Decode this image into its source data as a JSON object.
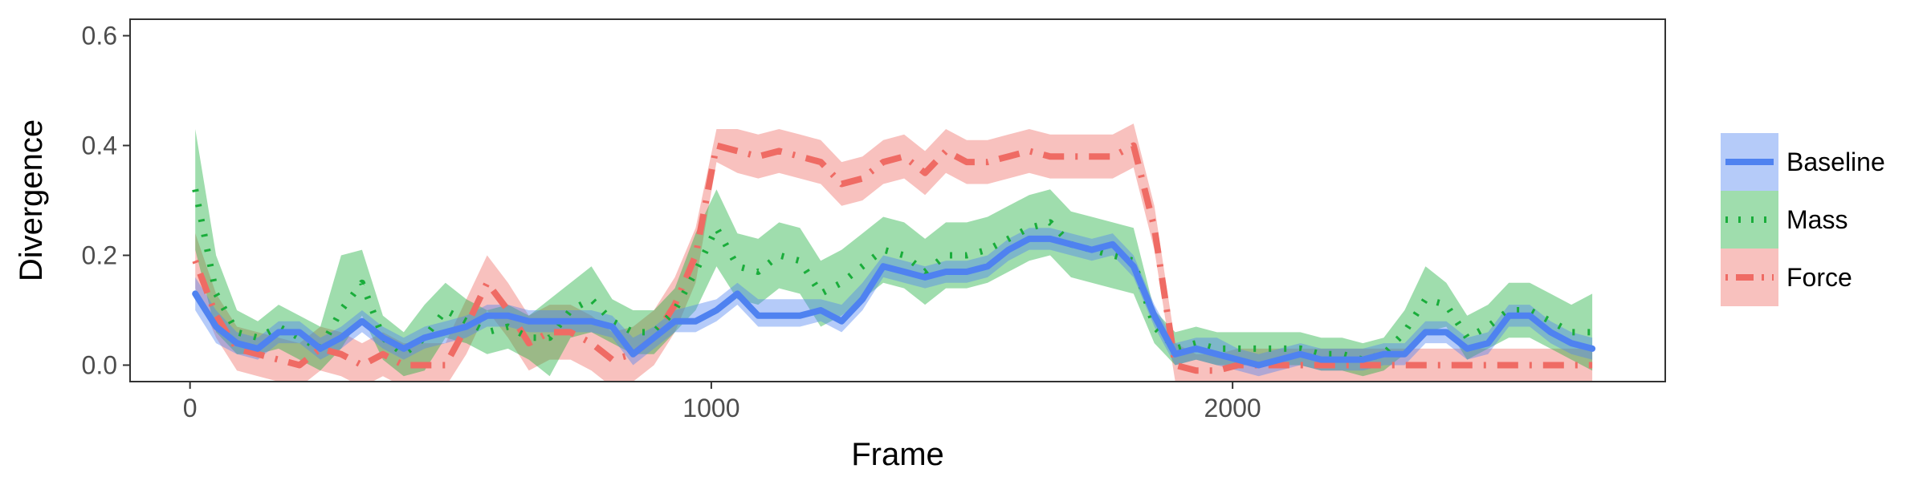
{
  "colors": {
    "Baseline": "#4f82f0",
    "Mass": "#1aad3b",
    "Force": "#ef6b64"
  },
  "chart_data": {
    "type": "line",
    "title": "",
    "xlabel": "Frame",
    "ylabel": "Divergence",
    "xlim": [
      -115,
      2830
    ],
    "ylim": [
      -0.03,
      0.63
    ],
    "x_ticks": [
      0,
      1000,
      2000
    ],
    "x_tick_labels": [
      "0",
      "1000",
      "2000"
    ],
    "y_ticks": [
      0.0,
      0.2,
      0.4,
      0.6
    ],
    "y_tick_labels": [
      "0.0",
      "0.2",
      "0.4",
      "0.6"
    ],
    "grid": false,
    "legend_position": "right",
    "x": [
      10,
      50,
      90,
      130,
      170,
      210,
      250,
      290,
      330,
      370,
      410,
      450,
      490,
      530,
      570,
      610,
      650,
      690,
      730,
      770,
      810,
      850,
      890,
      930,
      970,
      1010,
      1050,
      1090,
      1130,
      1170,
      1210,
      1250,
      1290,
      1330,
      1370,
      1410,
      1450,
      1490,
      1530,
      1570,
      1610,
      1650,
      1690,
      1730,
      1770,
      1810,
      1850,
      1890,
      1930,
      1970,
      2010,
      2050,
      2090,
      2130,
      2170,
      2210,
      2250,
      2290,
      2330,
      2370,
      2410,
      2450,
      2490,
      2530,
      2570,
      2610,
      2650,
      2690
    ],
    "series": [
      {
        "name": "Baseline",
        "style": "solid",
        "values": [
          0.13,
          0.07,
          0.04,
          0.03,
          0.06,
          0.06,
          0.03,
          0.05,
          0.08,
          0.05,
          0.03,
          0.05,
          0.06,
          0.07,
          0.09,
          0.09,
          0.08,
          0.08,
          0.08,
          0.08,
          0.07,
          0.02,
          0.05,
          0.08,
          0.08,
          0.1,
          0.13,
          0.09,
          0.09,
          0.09,
          0.1,
          0.08,
          0.12,
          0.18,
          0.17,
          0.16,
          0.17,
          0.17,
          0.18,
          0.21,
          0.23,
          0.23,
          0.22,
          0.21,
          0.22,
          0.18,
          0.09,
          0.02,
          0.03,
          0.02,
          0.01,
          0.0,
          0.01,
          0.02,
          0.01,
          0.01,
          0.01,
          0.02,
          0.02,
          0.06,
          0.06,
          0.03,
          0.04,
          0.09,
          0.09,
          0.06,
          0.04,
          0.03
        ],
        "upper": [
          0.16,
          0.1,
          0.06,
          0.05,
          0.08,
          0.08,
          0.05,
          0.07,
          0.1,
          0.07,
          0.05,
          0.07,
          0.08,
          0.09,
          0.11,
          0.11,
          0.1,
          0.1,
          0.1,
          0.1,
          0.09,
          0.05,
          0.07,
          0.1,
          0.11,
          0.12,
          0.15,
          0.12,
          0.12,
          0.12,
          0.12,
          0.11,
          0.15,
          0.2,
          0.19,
          0.18,
          0.19,
          0.19,
          0.2,
          0.23,
          0.25,
          0.25,
          0.24,
          0.23,
          0.24,
          0.2,
          0.11,
          0.04,
          0.05,
          0.05,
          0.03,
          0.02,
          0.03,
          0.04,
          0.03,
          0.03,
          0.03,
          0.04,
          0.04,
          0.08,
          0.08,
          0.05,
          0.06,
          0.11,
          0.11,
          0.08,
          0.06,
          0.05
        ],
        "lower": [
          0.1,
          0.04,
          0.02,
          0.01,
          0.04,
          0.04,
          0.01,
          0.03,
          0.06,
          0.03,
          0.01,
          0.03,
          0.04,
          0.05,
          0.07,
          0.07,
          0.06,
          0.06,
          0.06,
          0.06,
          0.05,
          0.0,
          0.03,
          0.06,
          0.06,
          0.08,
          0.11,
          0.07,
          0.07,
          0.07,
          0.08,
          0.06,
          0.1,
          0.16,
          0.15,
          0.14,
          0.15,
          0.15,
          0.16,
          0.19,
          0.21,
          0.21,
          0.2,
          0.19,
          0.2,
          0.16,
          0.07,
          0.0,
          0.01,
          0.0,
          -0.01,
          -0.02,
          -0.01,
          0.0,
          -0.01,
          -0.01,
          -0.01,
          0.0,
          0.0,
          0.04,
          0.04,
          0.01,
          0.02,
          0.07,
          0.07,
          0.04,
          0.02,
          0.01
        ]
      },
      {
        "name": "Mass",
        "style": "dotted",
        "values": [
          0.32,
          0.13,
          0.06,
          0.05,
          0.07,
          0.05,
          0.03,
          0.1,
          0.15,
          0.05,
          0.02,
          0.05,
          0.1,
          0.08,
          0.06,
          0.07,
          0.05,
          0.05,
          0.1,
          0.12,
          0.08,
          0.06,
          0.06,
          0.1,
          0.17,
          0.25,
          0.18,
          0.17,
          0.2,
          0.19,
          0.13,
          0.15,
          0.18,
          0.21,
          0.2,
          0.17,
          0.2,
          0.2,
          0.21,
          0.23,
          0.25,
          0.26,
          0.22,
          0.21,
          0.2,
          0.19,
          0.07,
          0.03,
          0.04,
          0.03,
          0.03,
          0.03,
          0.03,
          0.03,
          0.02,
          0.02,
          0.01,
          0.02,
          0.06,
          0.12,
          0.11,
          0.05,
          0.07,
          0.1,
          0.1,
          0.08,
          0.06,
          0.06
        ],
        "upper": [
          0.43,
          0.2,
          0.1,
          0.08,
          0.11,
          0.09,
          0.07,
          0.2,
          0.21,
          0.09,
          0.06,
          0.11,
          0.15,
          0.12,
          0.1,
          0.11,
          0.09,
          0.12,
          0.15,
          0.18,
          0.12,
          0.1,
          0.1,
          0.14,
          0.24,
          0.32,
          0.24,
          0.23,
          0.26,
          0.25,
          0.19,
          0.21,
          0.24,
          0.27,
          0.26,
          0.23,
          0.26,
          0.26,
          0.27,
          0.29,
          0.31,
          0.32,
          0.28,
          0.27,
          0.26,
          0.25,
          0.1,
          0.06,
          0.07,
          0.06,
          0.06,
          0.06,
          0.06,
          0.06,
          0.05,
          0.05,
          0.04,
          0.05,
          0.1,
          0.18,
          0.15,
          0.09,
          0.11,
          0.15,
          0.15,
          0.13,
          0.11,
          0.13
        ],
        "lower": [
          0.21,
          0.06,
          0.02,
          0.02,
          0.03,
          0.01,
          -0.01,
          0.03,
          0.09,
          0.01,
          -0.02,
          -0.01,
          0.05,
          0.04,
          0.02,
          0.03,
          0.01,
          -0.02,
          0.05,
          0.06,
          0.04,
          0.02,
          0.02,
          0.06,
          0.1,
          0.18,
          0.12,
          0.11,
          0.14,
          0.13,
          0.07,
          0.09,
          0.12,
          0.15,
          0.14,
          0.11,
          0.14,
          0.14,
          0.15,
          0.17,
          0.19,
          0.2,
          0.16,
          0.15,
          0.14,
          0.13,
          0.04,
          0.0,
          0.01,
          0.0,
          0.0,
          0.0,
          0.0,
          0.0,
          -0.01,
          -0.01,
          -0.02,
          -0.01,
          0.02,
          0.06,
          0.07,
          0.01,
          0.03,
          0.05,
          0.05,
          0.03,
          0.01,
          -0.01
        ]
      },
      {
        "name": "Force",
        "style": "dotdash",
        "values": [
          0.19,
          0.09,
          0.03,
          0.02,
          0.01,
          0.0,
          0.03,
          0.02,
          0.0,
          0.02,
          0.0,
          0.0,
          0.0,
          0.07,
          0.15,
          0.1,
          0.04,
          0.06,
          0.06,
          0.04,
          0.01,
          0.02,
          0.05,
          0.11,
          0.2,
          0.4,
          0.39,
          0.38,
          0.39,
          0.38,
          0.37,
          0.33,
          0.34,
          0.37,
          0.38,
          0.35,
          0.39,
          0.37,
          0.37,
          0.38,
          0.39,
          0.38,
          0.38,
          0.38,
          0.38,
          0.4,
          0.25,
          0.0,
          -0.01,
          -0.01,
          0.0,
          0.0,
          0.0,
          0.0,
          0.0,
          0.0,
          0.0,
          0.0,
          0.0,
          0.0,
          0.0,
          0.0,
          0.0,
          0.0,
          0.0,
          0.0,
          0.0,
          0.0
        ],
        "upper": [
          0.24,
          0.13,
          0.07,
          0.06,
          0.05,
          0.04,
          0.07,
          0.06,
          0.04,
          0.06,
          0.04,
          0.04,
          0.04,
          0.12,
          0.2,
          0.15,
          0.09,
          0.11,
          0.11,
          0.09,
          0.06,
          0.07,
          0.1,
          0.16,
          0.25,
          0.43,
          0.43,
          0.42,
          0.43,
          0.42,
          0.41,
          0.37,
          0.38,
          0.41,
          0.42,
          0.39,
          0.43,
          0.41,
          0.41,
          0.42,
          0.43,
          0.42,
          0.42,
          0.42,
          0.42,
          0.44,
          0.29,
          0.04,
          0.02,
          0.02,
          0.03,
          0.03,
          0.03,
          0.03,
          0.03,
          0.03,
          0.03,
          0.03,
          0.03,
          0.03,
          0.03,
          0.03,
          0.03,
          0.03,
          0.03,
          0.03,
          0.03,
          0.03
        ],
        "lower": [
          0.14,
          0.05,
          -0.01,
          -0.02,
          -0.03,
          -0.04,
          -0.01,
          -0.02,
          -0.04,
          -0.02,
          -0.04,
          -0.04,
          -0.04,
          0.02,
          0.1,
          0.05,
          -0.01,
          0.01,
          0.01,
          -0.01,
          -0.04,
          -0.03,
          0.0,
          0.06,
          0.15,
          0.37,
          0.35,
          0.34,
          0.35,
          0.34,
          0.33,
          0.29,
          0.3,
          0.33,
          0.34,
          0.31,
          0.35,
          0.33,
          0.33,
          0.34,
          0.35,
          0.34,
          0.34,
          0.34,
          0.34,
          0.36,
          0.21,
          -0.03,
          -0.04,
          -0.04,
          -0.03,
          -0.03,
          -0.03,
          -0.03,
          -0.03,
          -0.03,
          -0.03,
          -0.03,
          -0.03,
          -0.03,
          -0.03,
          -0.03,
          -0.03,
          -0.03,
          -0.03,
          -0.03,
          -0.03,
          -0.03
        ]
      }
    ]
  }
}
